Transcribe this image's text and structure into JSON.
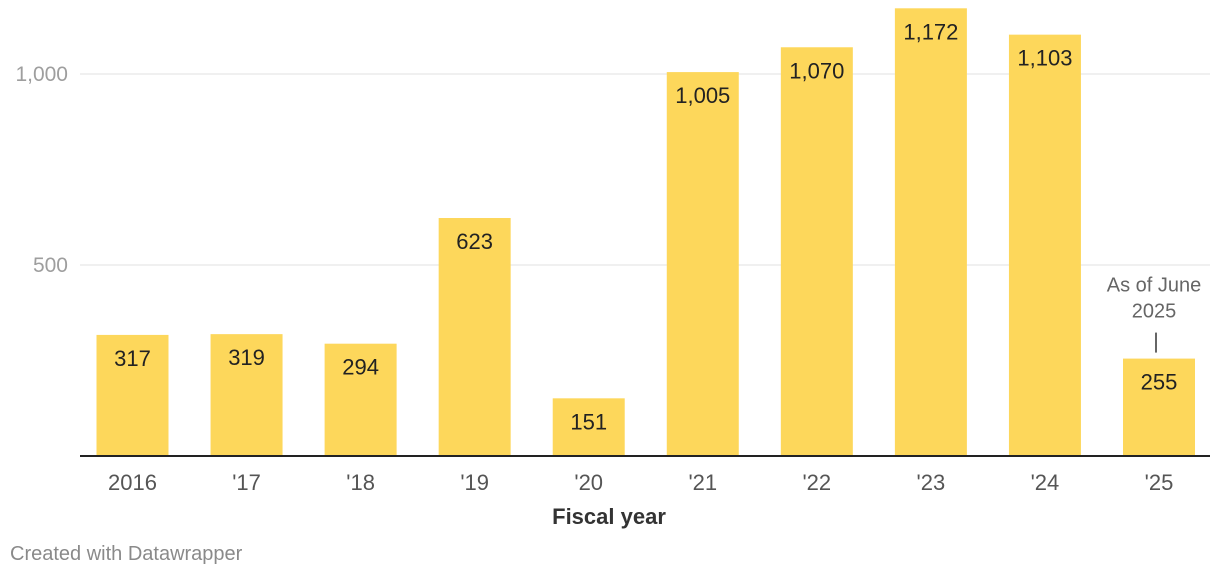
{
  "chart_data": {
    "type": "bar",
    "categories": [
      "2016",
      "'17",
      "'18",
      "'19",
      "'20",
      "'21",
      "'22",
      "'23",
      "'24",
      "'25"
    ],
    "values": [
      317,
      319,
      294,
      623,
      151,
      1005,
      1070,
      1172,
      1103,
      255
    ],
    "value_labels": [
      "317",
      "319",
      "294",
      "623",
      "151",
      "1,005",
      "1,070",
      "1,172",
      "1,103",
      "255"
    ],
    "xlabel": "Fiscal year",
    "ylabel": "",
    "ylim": [
      0,
      1200
    ],
    "yticks": [
      500,
      1000
    ],
    "ytick_labels": [
      "500",
      "1,000"
    ],
    "grid": true,
    "annotation": {
      "category_index": 9,
      "lines": [
        "As of June",
        "2025"
      ]
    },
    "colors": {
      "bar": "#fdd75b",
      "grid": "#e2e2e2",
      "baseline": "#222222"
    }
  },
  "footer": {
    "credit": "Created with Datawrapper"
  }
}
